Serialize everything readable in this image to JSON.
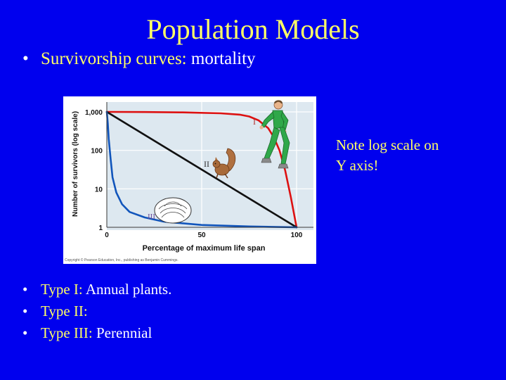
{
  "slide": {
    "title": "Population Models",
    "top_bullet": {
      "keyword": "Survivorship curves:",
      "text": " mortality"
    },
    "note_line1": "Note log scale on",
    "note_line2": "Y axis!",
    "bullets": [
      {
        "keyword": "Type I:",
        "text": " Annual plants."
      },
      {
        "keyword": "Type II:",
        "text": ""
      },
      {
        "keyword": "Type III:",
        "text": " Perennial"
      }
    ],
    "copyright": "Copyright © Pearson Education, Inc., publishing as Benjamin Cummings."
  },
  "colors": {
    "background": "#0000ee",
    "title": "#ffff66",
    "plot_bg": "#dde8f0",
    "type_i": "#dd1111",
    "type_ii": "#111111",
    "type_iii": "#1155bb",
    "curve_label": "#b03030"
  },
  "chart_data": {
    "type": "line",
    "xlabel": "Percentage of maximum life span",
    "ylabel": "Number of survivors (log scale)",
    "x_ticks": [
      0,
      50,
      100
    ],
    "y_scale": "log",
    "y_ticks": [
      {
        "value": 1,
        "label": "1"
      },
      {
        "value": 10,
        "label": "10"
      },
      {
        "value": 100,
        "label": "100"
      },
      {
        "value": 1000,
        "label": "1,000"
      }
    ],
    "xlim": [
      0,
      100
    ],
    "ylim": [
      1,
      1000
    ],
    "grid": true,
    "series": [
      {
        "name": "I",
        "x": [
          0,
          20,
          40,
          60,
          70,
          75,
          80,
          85,
          88,
          91,
          94,
          97,
          100
        ],
        "y": [
          1000,
          990,
          970,
          920,
          850,
          760,
          600,
          380,
          220,
          100,
          30,
          6,
          1
        ]
      },
      {
        "name": "II",
        "x": [
          0,
          100
        ],
        "y": [
          1000,
          1
        ]
      },
      {
        "name": "III",
        "x": [
          0,
          0.5,
          1,
          2,
          3,
          5,
          8,
          12,
          20,
          30,
          50,
          75,
          100
        ],
        "y": [
          1000,
          500,
          200,
          60,
          20,
          8,
          4,
          2.5,
          1.8,
          1.4,
          1.15,
          1.05,
          1
        ]
      }
    ],
    "annotations": [
      "squirrel",
      "runner",
      "clam"
    ]
  }
}
